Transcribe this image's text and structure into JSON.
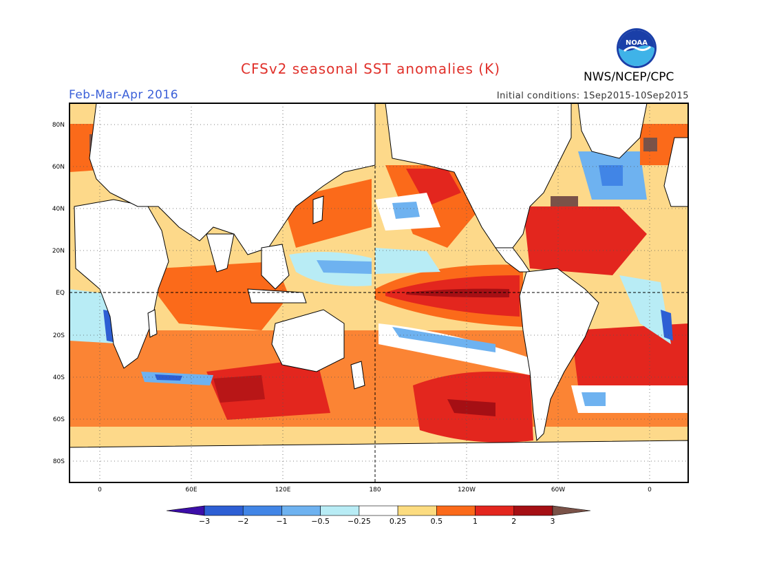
{
  "header": {
    "title": "CFSv2 seasonal SST anomalies (K)",
    "agency": "NWS/NCEP/CPC",
    "logo_text": "NOAA",
    "period": "Feb-Mar-Apr 2016",
    "initial_conditions": "Initial conditions: 1Sep2015-10Sep2015"
  },
  "colors": {
    "title": "#e0302a",
    "period": "#3a5fd8",
    "frame": "#000000"
  },
  "map": {
    "projection": "cylindrical equidistant",
    "lat_labels": [
      "80N",
      "60N",
      "40N",
      "20N",
      "EQ",
      "20S",
      "40S",
      "60S",
      "80S"
    ],
    "lon_labels": [
      "0",
      "60E",
      "120E",
      "180",
      "120W",
      "60W",
      "0"
    ],
    "reference_lines": [
      "EQ",
      "180"
    ]
  },
  "colorbar": {
    "ticks": [
      "−3",
      "−2",
      "−1",
      "−0.5",
      "−0.25",
      "0.25",
      "0.5",
      "1",
      "2",
      "3"
    ],
    "bins": [
      {
        "color": "#3c0ea8"
      },
      {
        "color": "#2d5fd4"
      },
      {
        "color": "#4185e6"
      },
      {
        "color": "#6eb2f0"
      },
      {
        "color": "#b8ecf5"
      },
      {
        "color": "#ffffff"
      },
      {
        "color": "#fcdc80"
      },
      {
        "color": "#fb6a1a"
      },
      {
        "color": "#e3261e"
      },
      {
        "color": "#a50f14"
      },
      {
        "color": "#7a5248"
      }
    ]
  }
}
